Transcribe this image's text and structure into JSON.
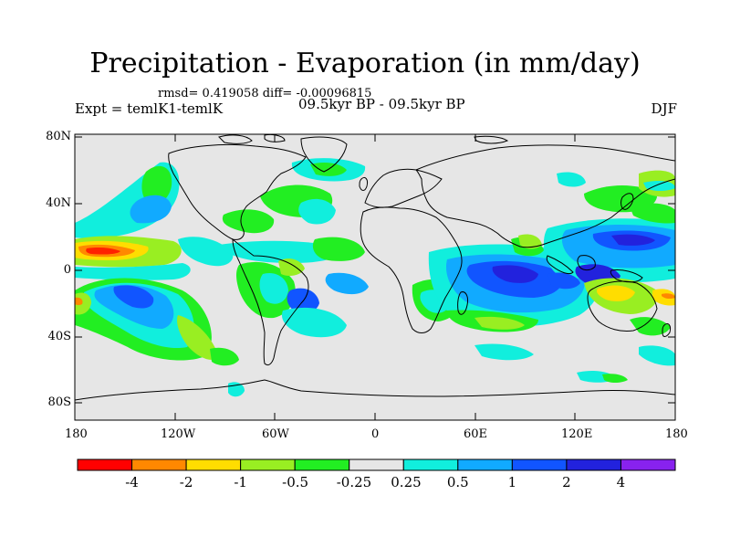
{
  "header": {
    "title": "Precipitation - Evaporation (in mm/day)",
    "stats": "rmsd= 0.419058 diff= -0.00096815",
    "experiment": "Expt = temlK1-temlK",
    "period": "09.5kyr BP - 09.5kyr BP",
    "season": "DJF"
  },
  "axes": {
    "lat_ticks": [
      "80N",
      "40N",
      "0",
      "40S",
      "80S"
    ],
    "lon_ticks": [
      "180",
      "120W",
      "60W",
      "0",
      "60E",
      "120E",
      "180"
    ]
  },
  "colorbar": {
    "labels": [
      "-4",
      "-2",
      "-1",
      "-0.5",
      "-0.25",
      "0.25",
      "0.5",
      "1",
      "2",
      "4"
    ],
    "colors": [
      "#ff0000",
      "#ff8800",
      "#ffdd00",
      "#99ee22",
      "#22ee22",
      "#e6e6e6",
      "#11eedd",
      "#11aaff",
      "#1155ff",
      "#2222dd",
      "#8822ee"
    ]
  },
  "palette": {
    "no_data": "#e6e6e6",
    "cyan": "#11eedd",
    "light_blue": "#11aaff",
    "blue": "#1155ff",
    "dark_blue": "#2222dd",
    "green": "#22ee22",
    "yellow_green": "#99ee22",
    "yellow": "#ffdd00",
    "orange": "#ff8800",
    "red": "#ff0000",
    "coast": "#000000"
  }
}
